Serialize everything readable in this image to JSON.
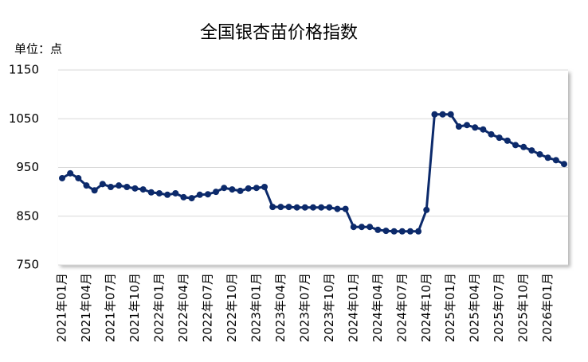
{
  "chart_data": {
    "type": "line",
    "title": "全国银杏苗价格指数",
    "y_label": "单位：点",
    "categories": [
      "2021年01月",
      null,
      null,
      "2021年04月",
      null,
      null,
      "2021年07月",
      null,
      null,
      "2021年10月",
      null,
      null,
      "2022年01月",
      null,
      null,
      "2022年04月",
      null,
      null,
      "2022年07月",
      null,
      null,
      "2022年10月",
      null,
      null,
      "2023年01月",
      null,
      null,
      "2023年04月",
      null,
      null,
      "2023年07月",
      null,
      null,
      "2023年10月",
      null,
      null,
      "2024年01月",
      null,
      null,
      "2024年04月",
      null,
      null,
      "2024年07月",
      null,
      null,
      "2024年10月",
      null,
      null,
      "2025年01月",
      null,
      null,
      "2025年04月",
      null,
      null,
      "2025年07月",
      null,
      null,
      "2025年10月",
      null,
      null,
      "2026年01月",
      null,
      null
    ],
    "series": [
      {
        "name": "全国银杏苗价格指数",
        "color": "#0c2a6b",
        "values": [
          928,
          938,
          928,
          913,
          903,
          916,
          910,
          913,
          910,
          907,
          905,
          899,
          897,
          894,
          897,
          889,
          887,
          894,
          895,
          900,
          908,
          905,
          902,
          907,
          908,
          910,
          869,
          869,
          869,
          868,
          868,
          868,
          868,
          868,
          865,
          865,
          828,
          828,
          828,
          822,
          820,
          819,
          819,
          819,
          819,
          863,
          1059,
          1059,
          1059,
          1034,
          1037,
          1032,
          1028,
          1018,
          1011,
          1005,
          996,
          992,
          985,
          977,
          970,
          965,
          957
        ]
      }
    ],
    "ylim": [
      750,
      1150
    ],
    "yticks": [
      750,
      850,
      950,
      1050,
      1150
    ],
    "grid": true
  }
}
